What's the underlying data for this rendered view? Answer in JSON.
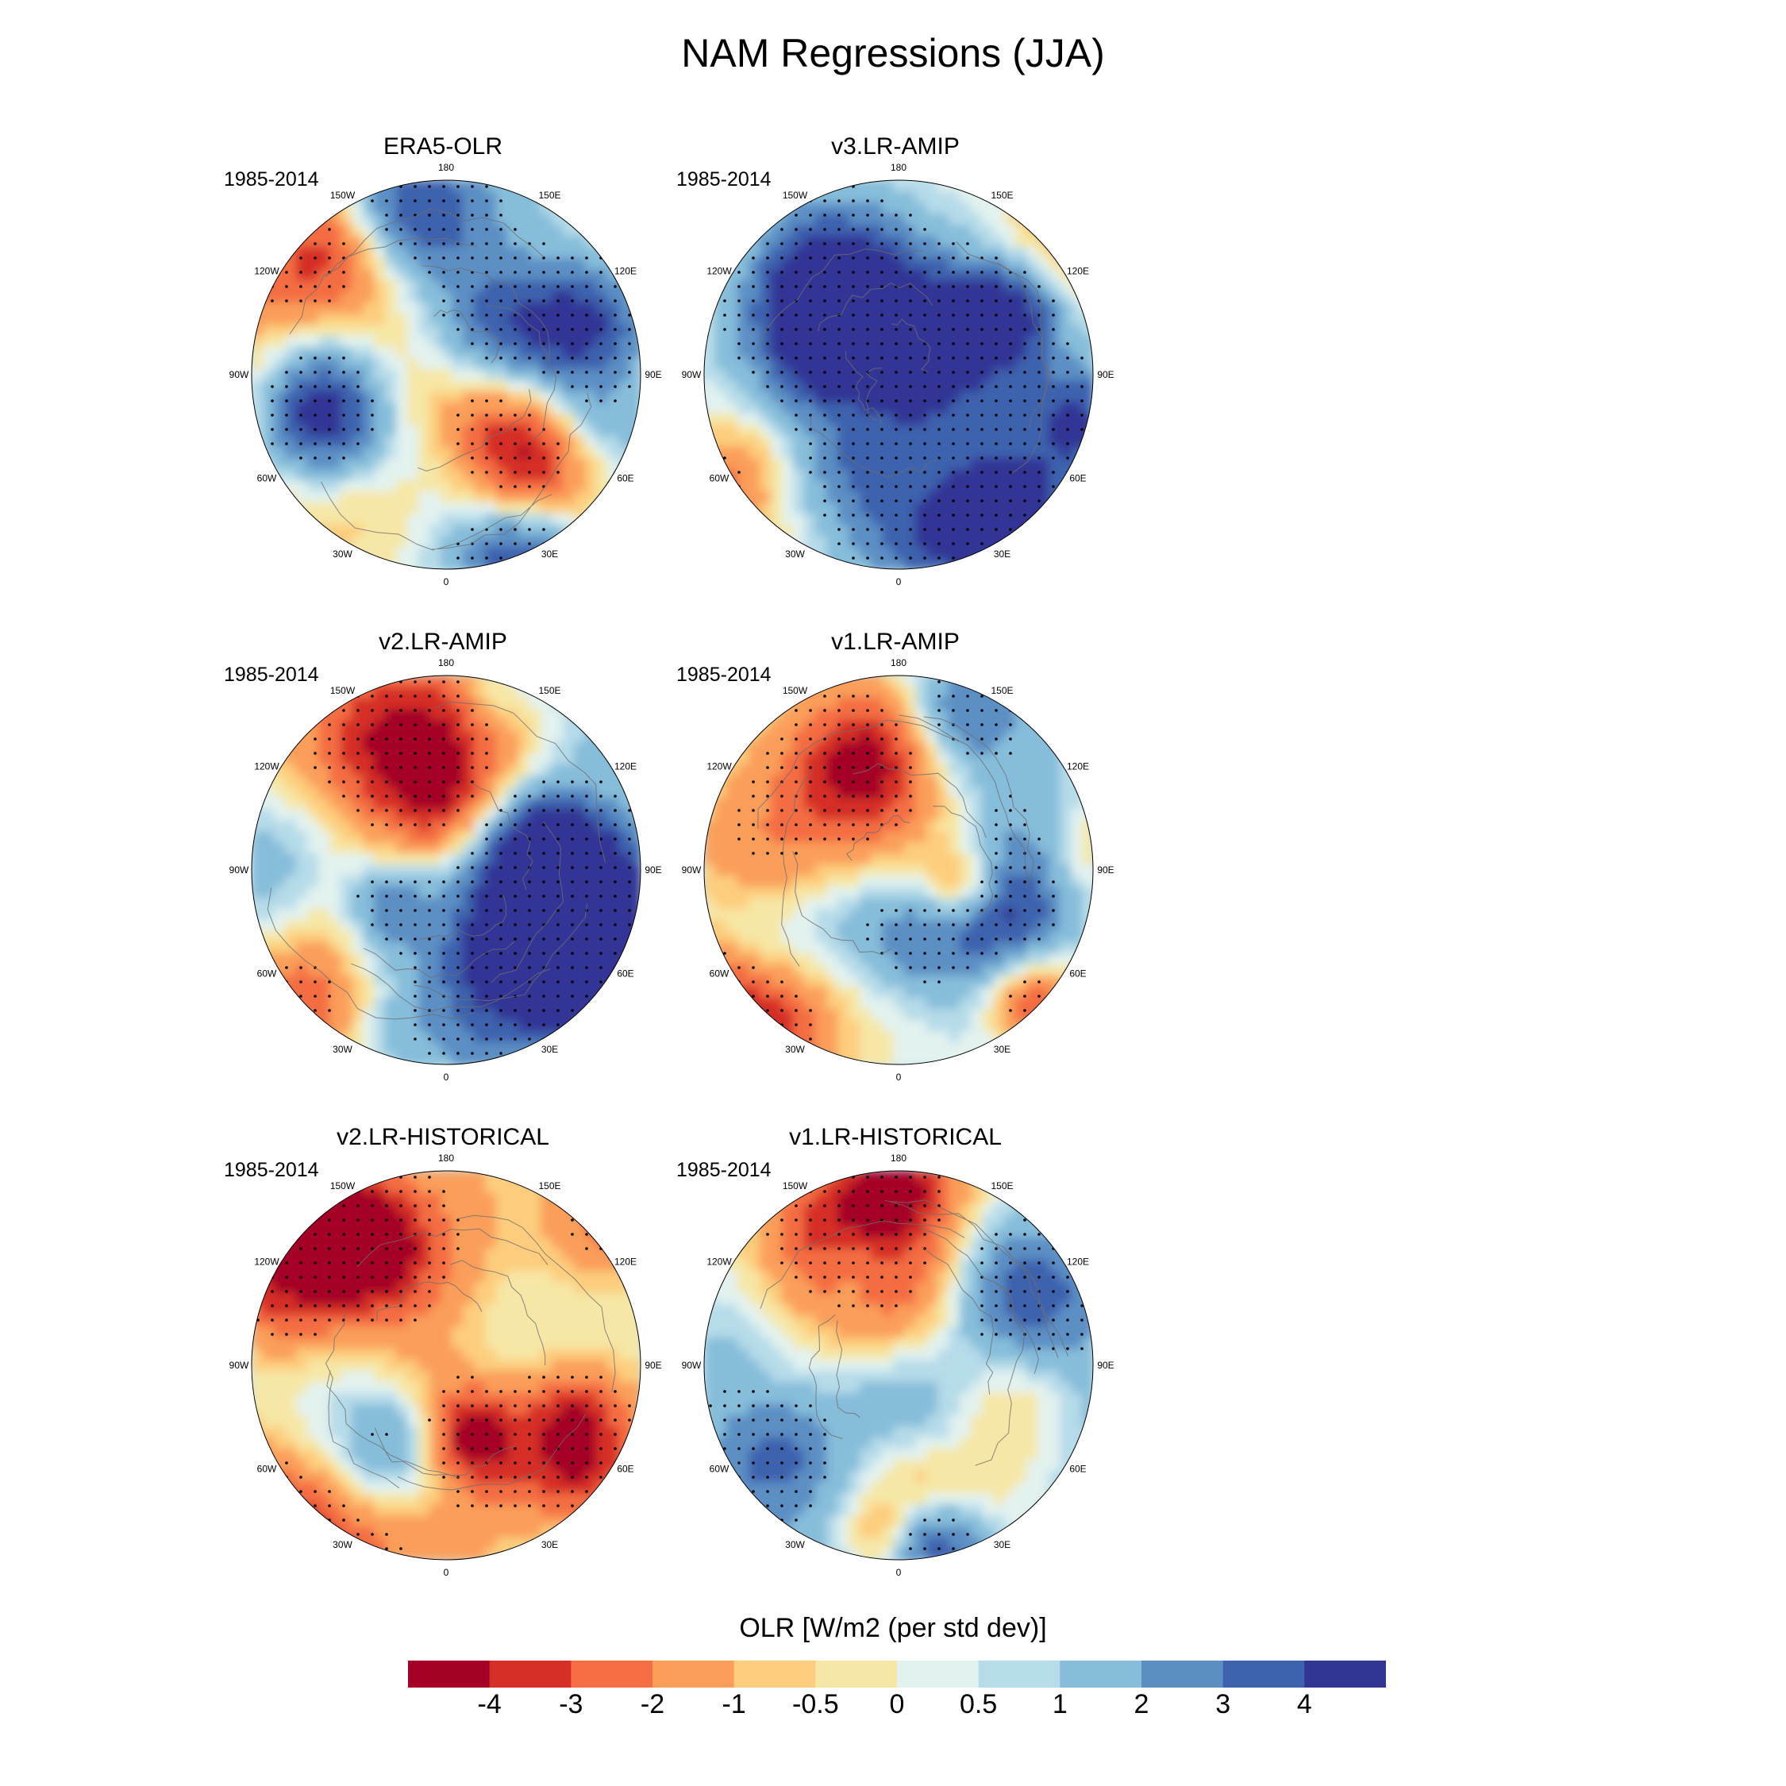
{
  "title": "NAM Regressions (JJA)",
  "panels": [
    {
      "title": "ERA5-OLR",
      "period": "1985-2014"
    },
    {
      "title": "v3.LR-AMIP",
      "period": "1985-2014"
    },
    {
      "title": "v2.LR-AMIP",
      "period": "1985-2014"
    },
    {
      "title": "v1.LR-AMIP",
      "period": "1985-2014"
    },
    {
      "title": "v2.LR-HISTORICAL",
      "period": "1985-2014"
    },
    {
      "title": "v1.LR-HISTORICAL",
      "period": "1985-2014"
    }
  ],
  "longitude_labels": [
    "180",
    "150E",
    "120E",
    "90E",
    "60E",
    "30E",
    "0",
    "30W",
    "60W",
    "90W",
    "120W",
    "150W"
  ],
  "colorbar": {
    "title": "OLR [W/m2 (per std dev)]",
    "ticks": [
      "-4",
      "-3",
      "-2",
      "-1",
      "-0.5",
      "0",
      "0.5",
      "1",
      "2",
      "3",
      "4"
    ],
    "colors": [
      "#a50026",
      "#d62f27",
      "#f46d43",
      "#fb9e5a",
      "#fdcd7d",
      "#f6e7a6",
      "#e2f2ef",
      "#b6dbe9",
      "#86bdda",
      "#5b8fc4",
      "#3d62ae",
      "#313695"
    ]
  },
  "map_data": {
    "projection": "north polar stereographic",
    "variable": "OLR regression on NAM index",
    "stippling": "statistically significant"
  }
}
